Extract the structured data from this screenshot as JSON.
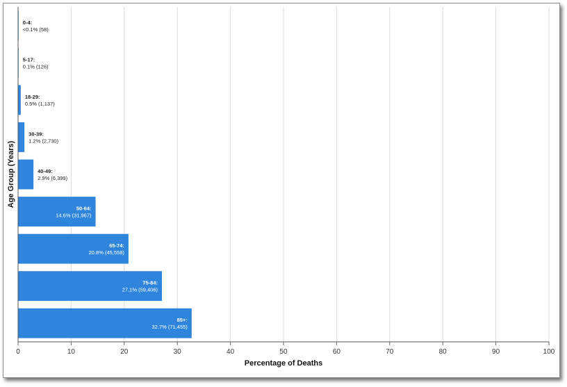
{
  "chart_data": {
    "type": "bar",
    "orientation": "horizontal",
    "xlabel": "Percentage of Deaths",
    "ylabel": "Age Group (Years)",
    "xlim": [
      0,
      100
    ],
    "xticks": [
      0,
      10,
      20,
      30,
      40,
      50,
      60,
      70,
      80,
      90,
      100
    ],
    "grid": true,
    "bar_color": "#2f85db",
    "categories": [
      "0-4",
      "5-17",
      "18-29",
      "30-39",
      "40-49",
      "50-64",
      "65-74",
      "75-84",
      "85+"
    ],
    "values": [
      0.07,
      0.1,
      0.5,
      1.2,
      2.9,
      14.6,
      20.8,
      27.1,
      32.7
    ],
    "data_labels": [
      {
        "category": "0-4:",
        "value": "<0.1% (58)"
      },
      {
        "category": "5-17:",
        "value": "0.1% (126)"
      },
      {
        "category": "18-29:",
        "value": "0.5% (1,137)"
      },
      {
        "category": "30-39:",
        "value": "1.2% (2,730)"
      },
      {
        "category": "40-49:",
        "value": "2.9% (6,399)"
      },
      {
        "category": "50-64:",
        "value": "14.6% (31,967)"
      },
      {
        "category": "65-74:",
        "value": "20.8% (45,558)"
      },
      {
        "category": "75-84:",
        "value": "27.1% (59,406)"
      },
      {
        "category": "85+:",
        "value": "32.7% (71,455)"
      }
    ]
  }
}
